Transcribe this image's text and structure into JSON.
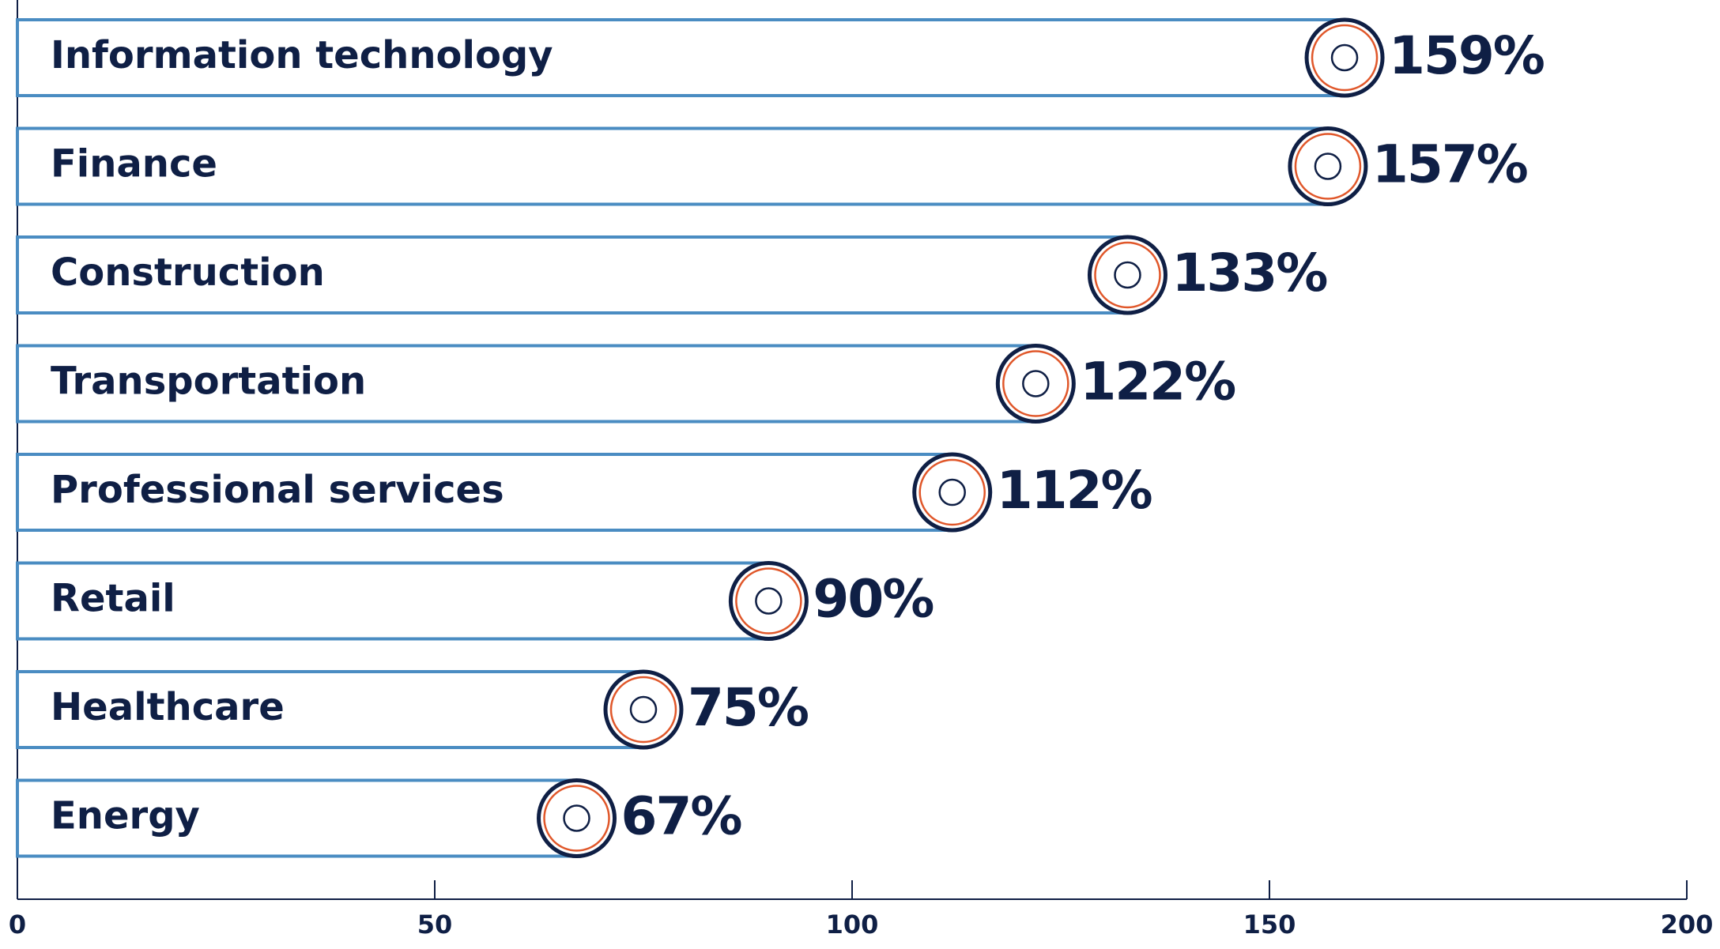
{
  "chart_data": {
    "type": "bar",
    "orientation": "horizontal",
    "categories": [
      "Information technology",
      "Finance",
      "Construction",
      "Transportation",
      "Professional services",
      "Retail",
      "Healthcare",
      "Energy"
    ],
    "values": [
      159,
      157,
      133,
      122,
      112,
      90,
      75,
      67
    ],
    "value_labels": [
      "159%",
      "157%",
      "133%",
      "122%",
      "112%",
      "90%",
      "75%",
      "67%"
    ],
    "color": "#4a8cc2",
    "xlim": [
      0,
      200
    ],
    "xticks": [
      0,
      50,
      100,
      150,
      200
    ]
  }
}
